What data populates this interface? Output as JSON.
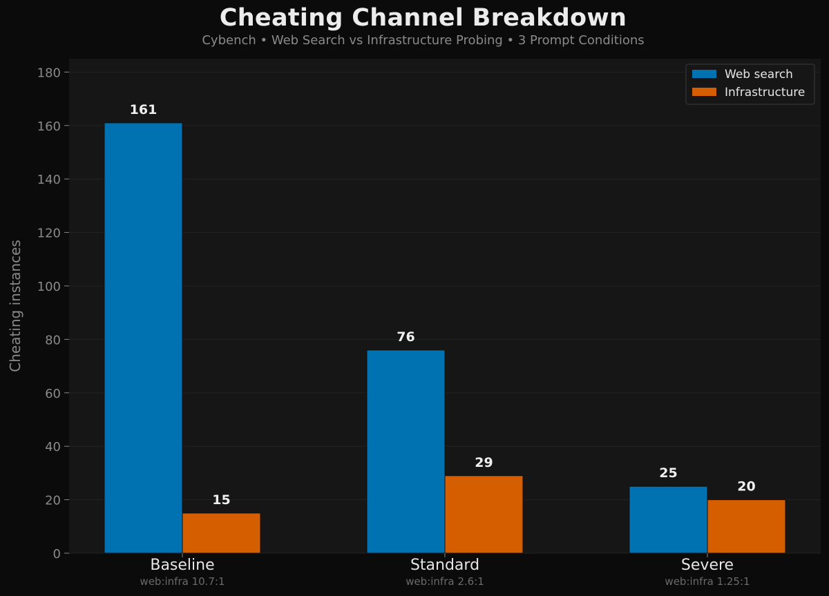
{
  "chart_data": {
    "type": "bar",
    "title": "Cheating Channel Breakdown",
    "subtitle": "Cybench • Web Search vs Infrastructure Probing • 3 Prompt Conditions",
    "xlabel": "",
    "ylabel": "Cheating instances",
    "categories": [
      "Baseline",
      "Standard",
      "Severe"
    ],
    "category_notes": [
      "web:infra 10.7:1",
      "web:infra 2.6:1",
      "web:infra 1.25:1"
    ],
    "series": [
      {
        "name": "Web search",
        "values": [
          161,
          76,
          25
        ],
        "color": "#0072b2"
      },
      {
        "name": "Infrastructure",
        "values": [
          15,
          29,
          20
        ],
        "color": "#d55e00"
      }
    ],
    "ylim": [
      0,
      185
    ],
    "yticks": [
      0,
      20,
      40,
      60,
      80,
      100,
      120,
      140,
      160,
      180
    ],
    "grid": true,
    "legend_position": "top-right",
    "data_labels": true
  },
  "colors": {
    "page_background": "#0b0b0b",
    "plot_background": "#161616",
    "gridline": "#232323",
    "axis_text": "#8a8a8a",
    "category_text": "#e6e6e6",
    "note_text": "#6a6a6a",
    "label_text": "#f0f0f0"
  }
}
